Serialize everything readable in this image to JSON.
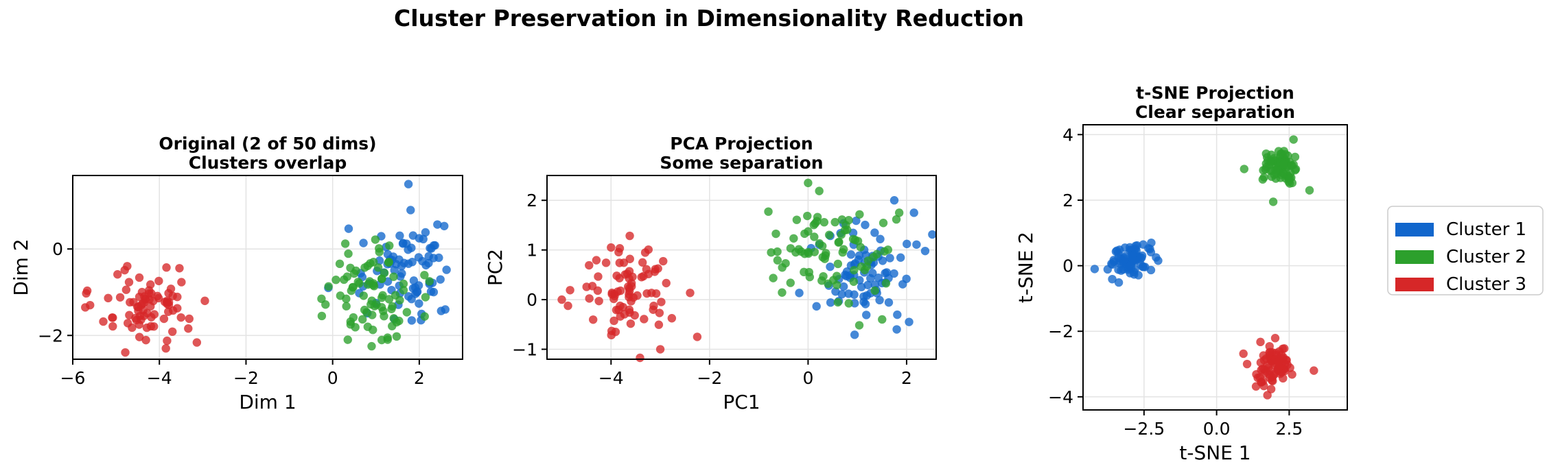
{
  "figure_title": "Cluster Preservation in Dimensionality Reduction",
  "colors": {
    "cluster1": "#1166cc",
    "cluster2": "#2ca02c",
    "cluster3": "#d62728"
  },
  "legend": {
    "placement": "right",
    "entries": [
      {
        "label": "Cluster 1",
        "color": "#1166cc"
      },
      {
        "label": "Cluster 2",
        "color": "#2ca02c"
      },
      {
        "label": "Cluster 3",
        "color": "#d62728"
      }
    ]
  },
  "chart_data": [
    {
      "type": "scatter",
      "title": [
        "Original (2 of 50 dims)",
        "Clusters overlap"
      ],
      "xlabel": "Dim 1",
      "ylabel": "Dim 2",
      "xlim": [
        -6.0,
        3.0
      ],
      "ylim": [
        -2.55,
        1.7
      ],
      "xticks": [
        -6,
        -4,
        -2,
        0,
        2
      ],
      "xtick_labels": [
        "−6",
        "−4",
        "−2",
        "0",
        "2"
      ],
      "yticks": [
        -2,
        0
      ],
      "ytick_labels": [
        "−2",
        "0"
      ],
      "grid": true,
      "series": [
        {
          "name": "Cluster 1",
          "center": [
            1.6,
            -0.5
          ],
          "spread": [
            0.55,
            0.5
          ],
          "n": 80,
          "outliers": [
            [
              1.75,
              1.5
            ],
            [
              1.8,
              0.9
            ],
            [
              -0.1,
              -0.9
            ],
            [
              2.6,
              -1.4
            ]
          ]
        },
        {
          "name": "Cluster 2",
          "center": [
            1.0,
            -1.0
          ],
          "spread": [
            0.6,
            0.5
          ],
          "n": 80,
          "outliers": [
            [
              -0.25,
              -1.55
            ],
            [
              0.9,
              -2.25
            ],
            [
              0.35,
              -2.1
            ]
          ]
        },
        {
          "name": "Cluster 3",
          "center": [
            -4.3,
            -1.35
          ],
          "spread": [
            0.55,
            0.4
          ],
          "n": 80,
          "outliers": [
            [
              -2.95,
              -1.2
            ],
            [
              -5.6,
              -1.3
            ],
            [
              -3.85,
              -2.3
            ]
          ]
        }
      ]
    },
    {
      "type": "scatter",
      "title": [
        "PCA Projection",
        "Some separation"
      ],
      "xlabel": "PC1",
      "ylabel": "PC2",
      "xlim": [
        -5.3,
        2.6
      ],
      "ylim": [
        -1.2,
        2.5
      ],
      "xticks": [
        -4,
        -2,
        0,
        2
      ],
      "xtick_labels": [
        "−4",
        "−2",
        "0",
        "2"
      ],
      "yticks": [
        -1,
        0,
        1,
        2
      ],
      "ytick_labels": [
        "−1",
        "0",
        "1",
        "2"
      ],
      "grid": true,
      "series": [
        {
          "name": "Cluster 1",
          "center": [
            1.2,
            0.5
          ],
          "spread": [
            0.45,
            0.5
          ],
          "n": 80,
          "outliers": [
            [
              2.15,
              1.75
            ],
            [
              1.8,
              -0.6
            ],
            [
              2.05,
              -0.45
            ],
            [
              1.75,
              2.0
            ]
          ]
        },
        {
          "name": "Cluster 2",
          "center": [
            0.5,
            1.0
          ],
          "spread": [
            0.55,
            0.5
          ],
          "n": 80,
          "outliers": [
            [
              -0.75,
              0.95
            ],
            [
              0.0,
              2.35
            ],
            [
              1.85,
              1.75
            ]
          ]
        },
        {
          "name": "Cluster 3",
          "center": [
            -3.6,
            0.15
          ],
          "spread": [
            0.55,
            0.5
          ],
          "n": 80,
          "outliers": [
            [
              -5.0,
              0.0
            ],
            [
              -2.25,
              -0.75
            ],
            [
              -3.0,
              -1.0
            ],
            [
              -4.0,
              1.05
            ]
          ]
        }
      ]
    },
    {
      "type": "scatter",
      "title": [
        "t-SNE Projection",
        "Clear separation"
      ],
      "xlabel": "t-SNE 1",
      "ylabel": "t-SNE 2",
      "xlim": [
        -4.6,
        4.5
      ],
      "ylim": [
        -4.4,
        4.3
      ],
      "xticks": [
        -2.5,
        0.0,
        2.5
      ],
      "xtick_labels": [
        "−2.5",
        "0.0",
        "2.5"
      ],
      "yticks": [
        -4,
        -2,
        0,
        2,
        4
      ],
      "ytick_labels": [
        "−4",
        "−2",
        "0",
        "2",
        "4"
      ],
      "grid": true,
      "series": [
        {
          "name": "Cluster 1",
          "center": [
            -2.95,
            0.15
          ],
          "spread": [
            0.35,
            0.25
          ],
          "n": 80,
          "outliers": [
            [
              -4.2,
              -0.1
            ],
            [
              -2.25,
              0.7
            ]
          ]
        },
        {
          "name": "Cluster 2",
          "center": [
            2.15,
            3.0
          ],
          "spread": [
            0.3,
            0.28
          ],
          "n": 80,
          "outliers": [
            [
              0.95,
              2.95
            ],
            [
              1.95,
              1.95
            ],
            [
              2.65,
              3.85
            ],
            [
              3.2,
              2.3
            ]
          ]
        },
        {
          "name": "Cluster 3",
          "center": [
            1.95,
            -3.0
          ],
          "spread": [
            0.35,
            0.3
          ],
          "n": 80,
          "outliers": [
            [
              3.35,
              -3.2
            ],
            [
              1.75,
              -3.95
            ],
            [
              1.05,
              -3.0
            ]
          ]
        }
      ]
    }
  ]
}
